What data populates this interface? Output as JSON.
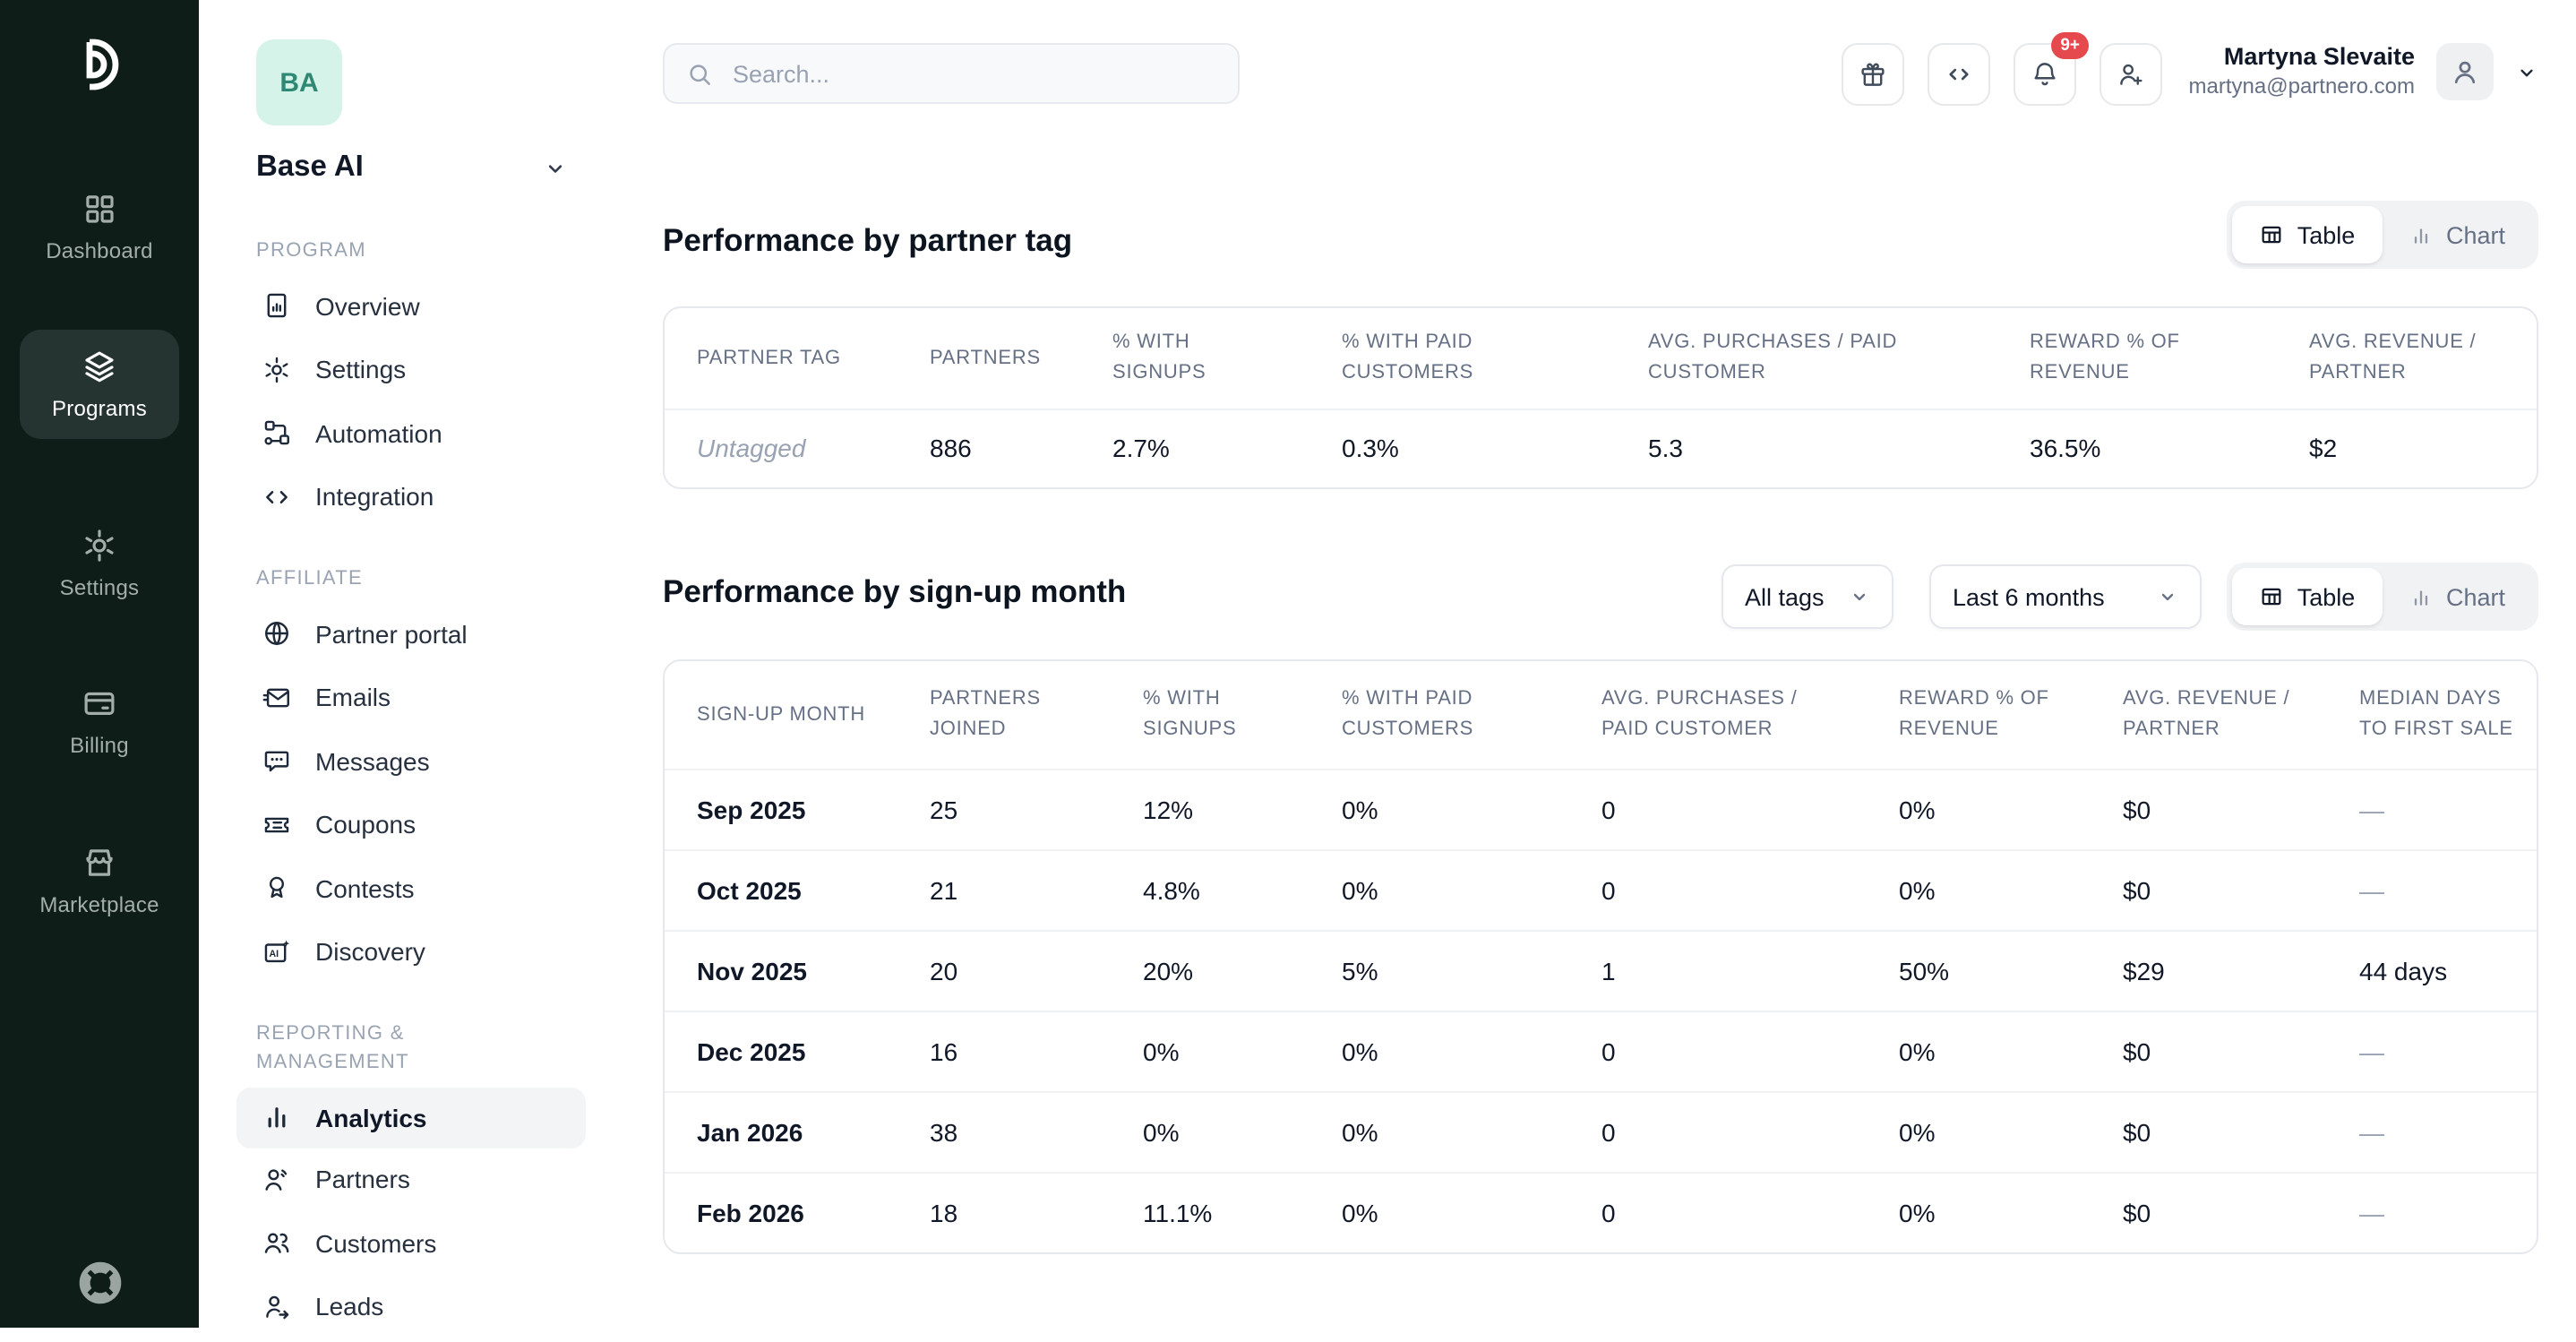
{
  "primary_nav": {
    "items": [
      {
        "label": "Dashboard",
        "active": false
      },
      {
        "label": "Programs",
        "active": true
      },
      {
        "label": "Settings",
        "active": false
      },
      {
        "label": "Billing",
        "active": false
      },
      {
        "label": "Marketplace",
        "active": false
      }
    ]
  },
  "program_sidebar": {
    "avatar_initials": "BA",
    "program_name": "Base AI",
    "sections": [
      {
        "label": "Program",
        "items": [
          {
            "label": "Overview"
          },
          {
            "label": "Settings"
          },
          {
            "label": "Automation"
          },
          {
            "label": "Integration"
          }
        ]
      },
      {
        "label": "Affiliate",
        "items": [
          {
            "label": "Partner portal"
          },
          {
            "label": "Emails"
          },
          {
            "label": "Messages"
          },
          {
            "label": "Coupons"
          },
          {
            "label": "Contests"
          },
          {
            "label": "Discovery"
          }
        ]
      },
      {
        "label": "Reporting & Management",
        "items": [
          {
            "label": "Analytics",
            "active": true
          },
          {
            "label": "Partners"
          },
          {
            "label": "Customers"
          },
          {
            "label": "Leads"
          }
        ]
      }
    ]
  },
  "topbar": {
    "search_placeholder": "Search...",
    "notification_badge": "9+",
    "user": {
      "name": "Martyna Slevaite",
      "email": "martyna@partnero.com"
    }
  },
  "sections": {
    "partner_tag": {
      "title": "Performance by partner tag",
      "view_toggle": {
        "table_label": "Table",
        "chart_label": "Chart",
        "active": "Table"
      },
      "table": {
        "columns": [
          "Partner tag",
          "Partners",
          "% with signups",
          "% with paid customers",
          "Avg. purchases / paid customer",
          "Reward % of revenue",
          "Avg. revenue / partner"
        ],
        "rows": [
          [
            "Untagged",
            "886",
            "2.7%",
            "0.3%",
            "5.3",
            "36.5%",
            "$2"
          ]
        ]
      }
    },
    "signup_month": {
      "title": "Performance by sign-up month",
      "filters": {
        "tags_label": "All tags",
        "range_label": "Last 6 months"
      },
      "view_toggle": {
        "table_label": "Table",
        "chart_label": "Chart",
        "active": "Table"
      },
      "table": {
        "columns": [
          "Sign-up month",
          "Partners joined",
          "% with signups",
          "% with paid customers",
          "Avg. purchases / paid customer",
          "Reward % of revenue",
          "Avg. revenue / partner",
          "Median days to first sale"
        ],
        "rows": [
          [
            "Sep 2025",
            "25",
            "12%",
            "0%",
            "0",
            "0%",
            "$0",
            "—"
          ],
          [
            "Oct 2025",
            "21",
            "4.8%",
            "0%",
            "0",
            "0%",
            "$0",
            "—"
          ],
          [
            "Nov 2025",
            "20",
            "20%",
            "5%",
            "1",
            "50%",
            "$29",
            "44 days"
          ],
          [
            "Dec 2025",
            "16",
            "0%",
            "0%",
            "0",
            "0%",
            "$0",
            "—"
          ],
          [
            "Jan 2026",
            "38",
            "0%",
            "0%",
            "0",
            "0%",
            "$0",
            "—"
          ],
          [
            "Feb 2026",
            "18",
            "11.1%",
            "0%",
            "0",
            "0%",
            "$0",
            "—"
          ]
        ]
      }
    }
  }
}
